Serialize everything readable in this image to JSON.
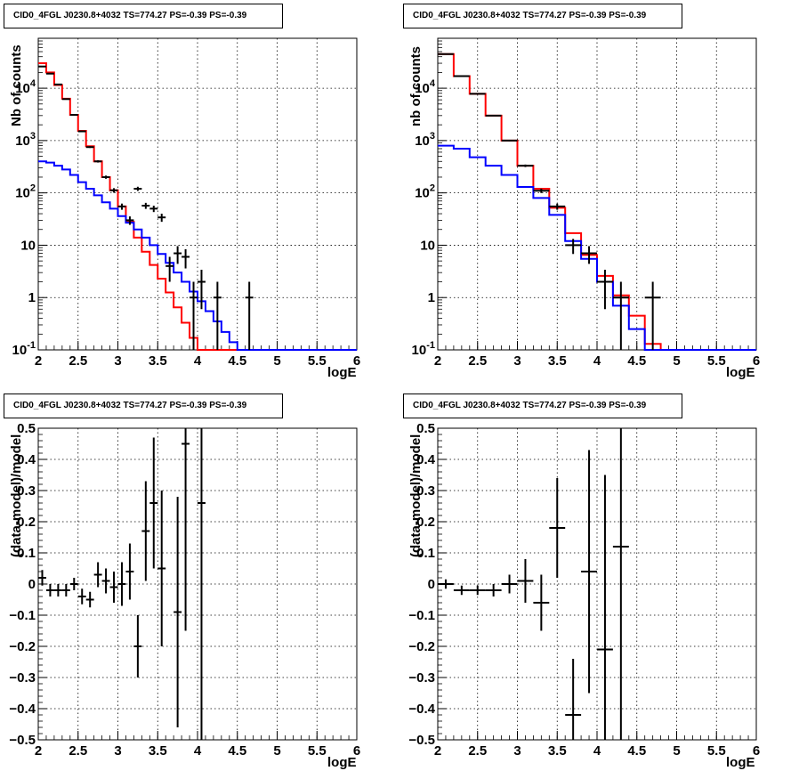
{
  "chart_data": [
    {
      "type": "line",
      "title": "CID0_4FGL J0230.8+4032 TS=774.27 PS=-0.39 PS=-0.39",
      "xlabel": "logE",
      "ylabel": "Nb of counts",
      "xlim": [
        2,
        6
      ],
      "ylim": [
        0.1,
        90000
      ],
      "yscale": "log",
      "grid": true,
      "x_ticks": [
        2,
        2.5,
        3,
        3.5,
        4,
        4.5,
        5,
        5.5,
        6
      ],
      "x_tick_labels": [
        "2",
        "2.5",
        "3",
        "3.5",
        "4",
        "4.5",
        "5",
        "5.5",
        "6"
      ],
      "y_ticks": [
        0.1,
        1,
        10,
        100,
        1000,
        10000
      ],
      "y_tick_labels": [
        "10^-1",
        "1",
        "10",
        "10^2",
        "10^3",
        "10^4"
      ],
      "bin_edges": [
        2.0,
        2.1,
        2.2,
        2.3,
        2.4,
        2.5,
        2.6,
        2.7,
        2.8,
        2.9,
        3.0,
        3.1,
        3.2,
        3.3,
        3.4,
        3.5,
        3.6,
        3.7,
        3.8,
        3.9,
        4.0,
        4.1,
        4.2,
        4.3,
        4.4,
        4.5,
        4.6,
        4.7,
        4.8,
        4.9,
        5.0,
        5.1,
        5.2,
        5.3,
        5.4,
        5.5,
        5.6,
        5.7,
        5.8,
        5.9,
        6.0
      ],
      "series": [
        {
          "color": "#ff0000",
          "values": [
            30000,
            20000,
            11500,
            6300,
            3100,
            1530,
            780,
            400,
            200,
            112,
            55,
            28,
            14,
            7.5,
            4.2,
            2.3,
            1.25,
            0.65,
            0.33,
            0.17,
            0.1,
            0.1,
            0.1,
            0.1,
            0.1,
            0.1,
            0.1,
            0.1,
            0.1,
            0.1,
            0.1,
            0.1,
            0.1,
            0.1,
            0.1,
            0.1,
            0.1,
            0.1,
            0.1,
            0.1
          ]
        },
        {
          "color": "#0000ff",
          "values": [
            400,
            380,
            330,
            280,
            220,
            160,
            120,
            90,
            66,
            50,
            36,
            27,
            20,
            14,
            10,
            6.8,
            4.6,
            3.0,
            2.0,
            1.3,
            0.85,
            0.55,
            0.35,
            0.22,
            0.14,
            0.1,
            0.1,
            0.1,
            0.1,
            0.1,
            0.1,
            0.1,
            0.1,
            0.1,
            0.1,
            0.1,
            0.1,
            0.1,
            0.1,
            0.1
          ]
        }
      ],
      "data_points": [
        {
          "x": 2.05,
          "y": 26000,
          "err": 160
        },
        {
          "x": 2.15,
          "y": 19000,
          "err": 140
        },
        {
          "x": 2.25,
          "y": 11800,
          "err": 110
        },
        {
          "x": 2.35,
          "y": 6200,
          "err": 80
        },
        {
          "x": 2.45,
          "y": 3100,
          "err": 56
        },
        {
          "x": 2.55,
          "y": 1500,
          "err": 39
        },
        {
          "x": 2.65,
          "y": 750,
          "err": 27
        },
        {
          "x": 2.75,
          "y": 400,
          "err": 20
        },
        {
          "x": 2.85,
          "y": 200,
          "err": 14
        },
        {
          "x": 2.95,
          "y": 112,
          "err": 11
        },
        {
          "x": 3.05,
          "y": 55,
          "err": 7.4
        },
        {
          "x": 3.15,
          "y": 30,
          "err": 5.5
        },
        {
          "x": 3.25,
          "y": 120,
          "err": 11
        },
        {
          "x": 3.35,
          "y": 57,
          "err": 7.5
        },
        {
          "x": 3.45,
          "y": 50,
          "err": 7
        },
        {
          "x": 3.55,
          "y": 34,
          "err": 6
        },
        {
          "x": 3.65,
          "y": 4,
          "err": 2
        },
        {
          "x": 3.75,
          "y": 7,
          "err": 2.6
        },
        {
          "x": 3.85,
          "y": 6,
          "err": 2.4
        },
        {
          "x": 3.95,
          "y": 1,
          "err": 1
        },
        {
          "x": 4.05,
          "y": 2,
          "err": 1.4
        },
        {
          "x": 4.25,
          "y": 1,
          "err": 1
        },
        {
          "x": 4.65,
          "y": 1,
          "err": 1
        }
      ]
    },
    {
      "type": "line",
      "title": "CID0_4FGL J0230.8+4032 TS=774.27 PS=-0.39 PS=-0.39",
      "xlabel": "logE",
      "ylabel": "nb of counts",
      "xlim": [
        2,
        6
      ],
      "ylim": [
        0.1,
        90000
      ],
      "yscale": "log",
      "grid": true,
      "x_ticks": [
        2,
        2.5,
        3,
        3.5,
        4,
        4.5,
        5,
        5.5,
        6
      ],
      "x_tick_labels": [
        "2",
        "2.5",
        "3",
        "3.5",
        "4",
        "4.5",
        "5",
        "5.5",
        "6"
      ],
      "y_ticks": [
        0.1,
        1,
        10,
        100,
        1000,
        10000
      ],
      "y_tick_labels": [
        "10^-1",
        "1",
        "10",
        "10^2",
        "10^3",
        "10^4"
      ],
      "bin_edges": [
        2.0,
        2.2,
        2.4,
        2.6,
        2.8,
        3.0,
        3.2,
        3.4,
        3.6,
        3.8,
        4.0,
        4.2,
        4.4,
        4.6,
        4.8,
        5.0,
        5.2,
        5.4,
        5.6,
        5.8,
        6.0
      ],
      "series": [
        {
          "color": "#ff0000",
          "values": [
            45000,
            17000,
            7800,
            3000,
            1000,
            330,
            120,
            52,
            17,
            6.5,
            2.6,
            1.1,
            0.45,
            0.13,
            0.1,
            0.1,
            0.1,
            0.1,
            0.1,
            0.1
          ]
        },
        {
          "color": "#0000ff",
          "values": [
            800,
            700,
            480,
            330,
            220,
            130,
            80,
            38,
            12,
            5.5,
            2.0,
            0.7,
            0.25,
            0.1,
            0.1,
            0.1,
            0.1,
            0.1,
            0.1,
            0.1
          ]
        }
      ],
      "data_points": [
        {
          "x": 2.1,
          "y": 45000,
          "err": 212
        },
        {
          "x": 2.3,
          "y": 17000,
          "err": 130
        },
        {
          "x": 2.5,
          "y": 7800,
          "err": 88
        },
        {
          "x": 2.7,
          "y": 3000,
          "err": 55
        },
        {
          "x": 2.9,
          "y": 1000,
          "err": 32
        },
        {
          "x": 3.1,
          "y": 330,
          "err": 18
        },
        {
          "x": 3.3,
          "y": 110,
          "err": 10.5
        },
        {
          "x": 3.5,
          "y": 55,
          "err": 7.4
        },
        {
          "x": 3.7,
          "y": 10,
          "err": 3.2
        },
        {
          "x": 3.9,
          "y": 7,
          "err": 2.6
        },
        {
          "x": 4.1,
          "y": 2,
          "err": 1.4
        },
        {
          "x": 4.3,
          "y": 1,
          "err": 1
        },
        {
          "x": 4.7,
          "y": 1,
          "err": 1
        }
      ]
    },
    {
      "type": "scatter",
      "title": "CID0_4FGL J0230.8+4032 TS=774.27 PS=-0.39 PS=-0.39",
      "xlabel": "logE",
      "ylabel": "(data-model)/model",
      "xlim": [
        2,
        6
      ],
      "ylim": [
        -0.5,
        0.5
      ],
      "grid": true,
      "x_ticks": [
        2,
        2.5,
        3,
        3.5,
        4,
        4.5,
        5,
        5.5,
        6
      ],
      "x_tick_labels": [
        "2",
        "2.5",
        "3",
        "3.5",
        "4",
        "4.5",
        "5",
        "5.5",
        "6"
      ],
      "y_ticks": [
        -0.5,
        -0.4,
        -0.3,
        -0.2,
        -0.1,
        0,
        0.1,
        0.2,
        0.3,
        0.4,
        0.5
      ],
      "y_tick_labels": [
        "−0.5",
        "−0.4",
        "−0.3",
        "−0.2",
        "−0.1",
        "0",
        "0.1",
        "0.2",
        "0.3",
        "0.4",
        "0.5"
      ],
      "bin_halfwidth": 0.05,
      "data_points": [
        {
          "x": 2.05,
          "y": 0.02,
          "err": 0.025
        },
        {
          "x": 2.15,
          "y": -0.02,
          "err": 0.02
        },
        {
          "x": 2.25,
          "y": -0.02,
          "err": 0.02
        },
        {
          "x": 2.35,
          "y": -0.02,
          "err": 0.02
        },
        {
          "x": 2.45,
          "y": 0.0,
          "err": 0.02
        },
        {
          "x": 2.55,
          "y": -0.04,
          "err": 0.025
        },
        {
          "x": 2.65,
          "y": -0.05,
          "err": 0.025
        },
        {
          "x": 2.75,
          "y": 0.03,
          "err": 0.04
        },
        {
          "x": 2.85,
          "y": 0.01,
          "err": 0.04
        },
        {
          "x": 2.95,
          "y": -0.01,
          "err": 0.05
        },
        {
          "x": 3.05,
          "y": 0.0,
          "err": 0.07
        },
        {
          "x": 3.15,
          "y": 0.04,
          "err": 0.09
        },
        {
          "x": 3.25,
          "y": -0.2,
          "err": 0.1
        },
        {
          "x": 3.35,
          "y": 0.17,
          "err": 0.16
        },
        {
          "x": 3.45,
          "y": 0.26,
          "err": 0.21
        },
        {
          "x": 3.55,
          "y": 0.05,
          "err": 0.25
        },
        {
          "x": 3.75,
          "y": -0.09,
          "err": 0.37
        },
        {
          "x": 3.85,
          "y": 0.45,
          "err": 0.6
        },
        {
          "x": 4.05,
          "y": 0.26,
          "err": 0.8
        }
      ]
    },
    {
      "type": "scatter",
      "title": "CID0_4FGL J0230.8+4032 TS=774.27 PS=-0.39 PS=-0.39",
      "xlabel": "logE",
      "ylabel": "(data-model)/model",
      "xlim": [
        2,
        6
      ],
      "ylim": [
        -0.5,
        0.5
      ],
      "grid": true,
      "x_ticks": [
        2,
        2.5,
        3,
        3.5,
        4,
        4.5,
        5,
        5.5,
        6
      ],
      "x_tick_labels": [
        "2",
        "2.5",
        "3",
        "3.5",
        "4",
        "4.5",
        "5",
        "5.5",
        "6"
      ],
      "y_ticks": [
        -0.5,
        -0.4,
        -0.3,
        -0.2,
        -0.1,
        0,
        0.1,
        0.2,
        0.3,
        0.4,
        0.5
      ],
      "y_tick_labels": [
        "−0.5",
        "−0.4",
        "−0.3",
        "−0.2",
        "−0.1",
        "0",
        "0.1",
        "0.2",
        "0.3",
        "0.4",
        "0.5"
      ],
      "bin_halfwidth": 0.1,
      "data_points": [
        {
          "x": 2.1,
          "y": 0.0,
          "err": 0.015
        },
        {
          "x": 2.3,
          "y": -0.02,
          "err": 0.015
        },
        {
          "x": 2.5,
          "y": -0.02,
          "err": 0.015
        },
        {
          "x": 2.7,
          "y": -0.02,
          "err": 0.02
        },
        {
          "x": 2.9,
          "y": 0.0,
          "err": 0.03
        },
        {
          "x": 3.1,
          "y": 0.01,
          "err": 0.07
        },
        {
          "x": 3.3,
          "y": -0.06,
          "err": 0.09
        },
        {
          "x": 3.5,
          "y": 0.18,
          "err": 0.16
        },
        {
          "x": 3.7,
          "y": -0.42,
          "err": 0.18
        },
        {
          "x": 3.9,
          "y": 0.04,
          "err": 0.39
        },
        {
          "x": 4.1,
          "y": -0.21,
          "err": 0.56
        },
        {
          "x": 4.3,
          "y": 0.12,
          "err": 0.9
        }
      ]
    }
  ]
}
